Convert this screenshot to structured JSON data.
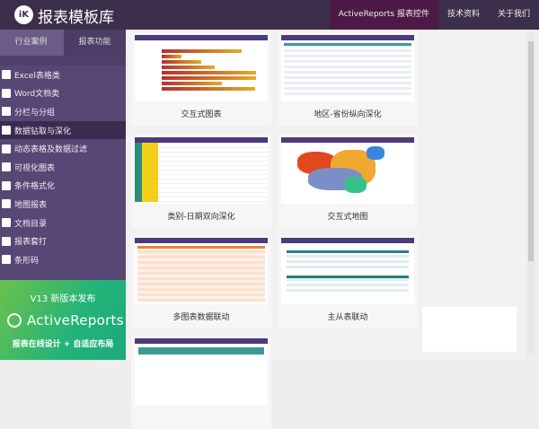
{
  "header": {
    "logo_text": "iK",
    "title": "报表模板库",
    "nav": [
      "ActiveReports 报表控件",
      "技术资料",
      "关于我们"
    ]
  },
  "sidebar": {
    "tabs": [
      "行业案例",
      "报表功能"
    ],
    "items": [
      {
        "label": "Excel表格类",
        "icon": "excel-icon"
      },
      {
        "label": "Word文档类",
        "icon": "word-icon"
      },
      {
        "label": "分栏与分组",
        "icon": "columns-icon"
      },
      {
        "label": "数据钻取与深化",
        "icon": "filter-icon",
        "active": true
      },
      {
        "label": "动态表格及数据过滤",
        "icon": "table-icon"
      },
      {
        "label": "可视化图表",
        "icon": "chart-icon"
      },
      {
        "label": "条件格式化",
        "icon": "paint-roller-icon"
      },
      {
        "label": "地图报表",
        "icon": "globe-icon"
      },
      {
        "label": "文档目录",
        "icon": "list-icon"
      },
      {
        "label": "报表套打",
        "icon": "printer-icon"
      },
      {
        "label": "条形码",
        "icon": "barcode-icon"
      }
    ],
    "promo": {
      "version": "V13 新版本发布",
      "brand": "ActiveReports",
      "slogan": "报表在线设计 + 自适应布局"
    }
  },
  "cards": [
    {
      "caption": "交互式图表",
      "type": "bar"
    },
    {
      "caption": "地区-省份纵向深化",
      "type": "grid"
    },
    {
      "caption": "类别-日期双向深化",
      "type": "yellowgrid"
    },
    {
      "caption": "交互式地图",
      "type": "map"
    },
    {
      "caption": "多图表数据联动",
      "type": "orange"
    },
    {
      "caption": "主从表联动",
      "type": "teal"
    },
    {
      "caption": "",
      "type": "partial"
    }
  ],
  "colors": {
    "header": "#3b2f4b",
    "sidebar": "#574775",
    "accent": "#4d1a45",
    "promo": "#22b37a"
  }
}
